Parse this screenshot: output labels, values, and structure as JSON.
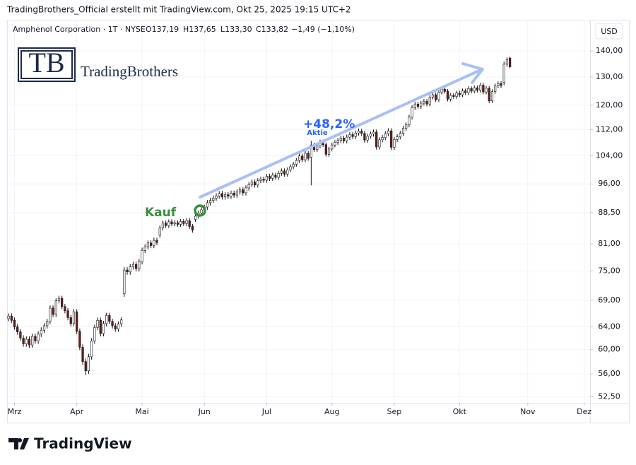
{
  "header": "TradingBrothers_Official erstellt mit TradingView.com, Okt 25, 2025 19:15 UTC+2",
  "logo": {
    "initials": "TB",
    "name": "TradingBrothers"
  },
  "footer": "TradingView",
  "chart_data": {
    "type": "candlestick",
    "title": "Amphenol Corporation · 1T · NYSE",
    "legend_values": [
      "O137,19",
      "H137,65",
      "L133,30",
      "C133,82",
      "−1,49 (−1,10%)"
    ],
    "currency": "USD",
    "annotations": {
      "gain": "+48,2%",
      "gain_note": "Aktie",
      "buy": "Kauf"
    },
    "log_scale": true,
    "grid": true,
    "up_color": "#ffffff",
    "down_color": "#6d1b1b",
    "border_color": "#111111",
    "ylim": [
      51.6,
      152.9
    ],
    "yticks": [
      {
        "value": 52.5,
        "label": "52,50"
      },
      {
        "value": 56,
        "label": "56,00"
      },
      {
        "value": 60,
        "label": "60,00"
      },
      {
        "value": 64,
        "label": "64,00"
      },
      {
        "value": 69,
        "label": "69,00"
      },
      {
        "value": 75,
        "label": "75,00"
      },
      {
        "value": 81,
        "label": "81,00"
      },
      {
        "value": 88.5,
        "label": "88,50"
      },
      {
        "value": 96,
        "label": "96,00"
      },
      {
        "value": 104,
        "label": "104,00"
      },
      {
        "value": 112,
        "label": "112,00"
      },
      {
        "value": 120,
        "label": "120,00"
      },
      {
        "value": 130,
        "label": "130,00"
      },
      {
        "value": 140,
        "label": "140,00"
      }
    ],
    "xlim": [
      -0.5,
      196
    ],
    "xticks": [
      {
        "value": 2,
        "label": "Mrz"
      },
      {
        "value": 23,
        "label": "Apr"
      },
      {
        "value": 45,
        "label": "Mai"
      },
      {
        "value": 66,
        "label": "Jun"
      },
      {
        "value": 87,
        "label": "Jul"
      },
      {
        "value": 109,
        "label": "Aug"
      },
      {
        "value": 130,
        "label": "Sep"
      },
      {
        "value": 152,
        "label": "Okt"
      },
      {
        "value": 175,
        "label": "Nov"
      },
      {
        "value": 194,
        "label": "Dez"
      }
    ],
    "open": [
      65.5,
      66.0,
      65.2,
      64.0,
      63.1,
      62.0,
      61.0,
      61.8,
      60.8,
      62.3,
      61.5,
      62.7,
      63.4,
      64.2,
      65.0,
      67.5,
      66.3,
      68.9,
      69.4,
      67.8,
      67.0,
      65.7,
      64.6,
      66.8,
      63.2,
      60.4,
      58.0,
      56.5,
      58.8,
      61.5,
      63.9,
      65.2,
      62.8,
      64.6,
      66.1,
      65.0,
      64.2,
      63.6,
      64.5,
      70.3,
      75.2,
      74.8,
      75.9,
      76.4,
      75.5,
      77.0,
      79.5,
      80.3,
      81.2,
      80.6,
      81.8,
      83.0,
      84.7,
      85.9,
      85.3,
      86.2,
      85.7,
      86.0,
      85.6,
      86.3,
      85.8,
      86.5,
      85.1,
      86.8,
      87.6,
      88.4,
      89.2,
      89.9,
      91.0,
      91.6,
      92.2,
      92.8,
      93.4,
      92.5,
      93.1,
      92.7,
      93.5,
      93.0,
      93.8,
      94.4,
      93.6,
      94.9,
      95.8,
      96.5,
      95.7,
      96.9,
      97.3,
      97.0,
      98.1,
      97.5,
      98.4,
      97.8,
      98.9,
      99.6,
      98.7,
      99.9,
      100.8,
      101.5,
      102.6,
      103.9,
      102.8,
      104.7,
      103.5,
      107.2,
      105.8,
      106.9,
      108.1,
      107.3,
      104.4,
      106.0,
      107.2,
      108.0,
      108.6,
      109.3,
      108.5,
      109.6,
      110.4,
      109.8,
      110.9,
      111.5,
      110.8,
      108.7,
      109.9,
      110.6,
      111.2,
      106.6,
      108.8,
      109.5,
      110.7,
      111.6,
      106.5,
      108.9,
      109.7,
      110.8,
      112.4,
      113.5,
      116.0,
      119.2,
      120.4,
      119.6,
      120.7,
      121.3,
      120.4,
      122.8,
      123.6,
      121.9,
      124.5,
      125.6,
      124.8,
      122.1,
      123.4,
      123.0,
      124.2,
      123.6,
      125.0,
      124.3,
      125.8,
      124.9,
      126.1,
      125.2,
      127.0,
      124.6,
      125.9,
      121.5,
      124.7,
      126.8,
      127.6,
      128.0,
      134.8,
      137.19
    ],
    "high": [
      66.5,
      66.5,
      65.7,
      64.5,
      63.6,
      62.5,
      62.3,
      62.3,
      62.8,
      62.8,
      63.2,
      63.9,
      64.7,
      65.5,
      68.0,
      68.0,
      69.4,
      69.9,
      69.9,
      68.3,
      67.5,
      66.2,
      67.3,
      67.3,
      63.7,
      60.9,
      58.5,
      59.3,
      62.0,
      64.4,
      65.7,
      65.7,
      65.1,
      66.6,
      66.6,
      65.5,
      64.7,
      65.0,
      65.8,
      75.8,
      75.8,
      76.5,
      77.0,
      77.0,
      77.6,
      80.1,
      80.9,
      81.8,
      81.8,
      82.4,
      82.4,
      85.3,
      86.5,
      86.5,
      86.8,
      86.8,
      86.6,
      86.6,
      86.9,
      86.9,
      87.1,
      87.1,
      85.7,
      88.2,
      89.0,
      89.8,
      90.5,
      91.7,
      92.3,
      92.9,
      93.5,
      94.1,
      94.1,
      93.8,
      93.8,
      94.2,
      94.2,
      94.5,
      95.1,
      95.1,
      95.6,
      96.5,
      97.2,
      97.2,
      97.6,
      98.0,
      98.0,
      98.8,
      98.8,
      99.1,
      99.1,
      99.6,
      100.3,
      100.3,
      100.6,
      101.5,
      102.2,
      103.3,
      104.6,
      104.6,
      105.4,
      105.4,
      108.5,
      107.9,
      107.6,
      108.8,
      108.8,
      108.0,
      106.7,
      107.9,
      108.7,
      109.4,
      110.1,
      110.1,
      110.4,
      111.2,
      111.2,
      111.7,
      112.3,
      112.3,
      111.6,
      110.7,
      111.4,
      112.0,
      112.0,
      109.6,
      110.3,
      111.5,
      112.4,
      112.4,
      109.7,
      110.5,
      111.6,
      113.2,
      114.3,
      116.8,
      120.0,
      121.2,
      121.2,
      121.5,
      122.1,
      122.1,
      123.6,
      124.4,
      124.4,
      125.3,
      126.4,
      126.4,
      125.6,
      124.2,
      124.2,
      125.0,
      125.0,
      125.8,
      125.8,
      126.6,
      126.6,
      126.9,
      126.9,
      127.8,
      127.8,
      126.7,
      126.7,
      125.5,
      127.6,
      128.4,
      128.4,
      135.8,
      137.5,
      137.65
    ],
    "low": [
      65.0,
      64.7,
      63.5,
      62.6,
      61.5,
      60.5,
      60.5,
      60.3,
      60.3,
      61.0,
      61.0,
      62.2,
      62.9,
      63.7,
      64.5,
      65.8,
      65.8,
      68.4,
      67.3,
      66.5,
      65.2,
      64.1,
      64.1,
      62.7,
      59.9,
      57.5,
      55.8,
      56.0,
      58.3,
      61.0,
      63.4,
      62.3,
      62.3,
      64.1,
      64.5,
      63.7,
      63.1,
      63.1,
      64.0,
      69.7,
      74.2,
      74.2,
      75.3,
      74.9,
      74.9,
      76.4,
      78.9,
      79.7,
      80.0,
      80.0,
      80.7,
      82.4,
      84.1,
      84.7,
      84.7,
      85.1,
      85.1,
      85.0,
      85.0,
      85.2,
      85.2,
      84.5,
      83.6,
      86.2,
      87.0,
      87.8,
      88.6,
      89.2,
      90.3,
      90.9,
      91.5,
      92.1,
      91.8,
      91.8,
      92.0,
      92.0,
      92.3,
      92.3,
      93.1,
      92.9,
      92.9,
      94.2,
      95.1,
      95.0,
      95.0,
      96.2,
      96.3,
      96.3,
      96.8,
      96.8,
      97.1,
      97.1,
      98.2,
      98.0,
      98.0,
      99.2,
      100.1,
      100.8,
      101.9,
      102.1,
      102.1,
      102.5,
      95.6,
      105.1,
      105.1,
      106.2,
      106.6,
      103.7,
      103.7,
      105.3,
      106.5,
      107.2,
      107.8,
      107.7,
      107.7,
      108.8,
      109.0,
      109.0,
      110.1,
      110.0,
      107.9,
      107.9,
      109.1,
      109.8,
      105.8,
      105.8,
      108.0,
      108.7,
      109.9,
      105.7,
      105.7,
      108.1,
      108.9,
      110.0,
      111.6,
      112.7,
      115.2,
      118.4,
      118.8,
      118.8,
      119.9,
      119.6,
      119.6,
      122.0,
      121.1,
      121.1,
      123.7,
      124.0,
      121.3,
      121.3,
      122.2,
      122.2,
      122.8,
      122.8,
      123.5,
      123.5,
      124.1,
      124.1,
      124.4,
      124.4,
      123.8,
      123.8,
      120.7,
      120.7,
      123.9,
      126.0,
      126.1,
      127.0,
      133.8,
      133.3
    ],
    "close": [
      66.0,
      65.2,
      64.0,
      63.1,
      62.0,
      61.0,
      61.8,
      60.8,
      62.3,
      61.5,
      62.7,
      63.4,
      64.2,
      65.0,
      67.5,
      66.3,
      68.9,
      69.4,
      67.8,
      67.0,
      65.7,
      64.6,
      66.8,
      63.2,
      60.4,
      58.0,
      56.5,
      58.8,
      61.5,
      63.9,
      65.2,
      62.8,
      64.6,
      66.1,
      65.0,
      64.2,
      63.6,
      64.5,
      65.3,
      75.2,
      74.8,
      75.9,
      76.4,
      75.5,
      77.0,
      79.5,
      80.3,
      81.2,
      80.6,
      81.8,
      81.3,
      84.7,
      85.9,
      85.3,
      86.2,
      85.7,
      86.0,
      85.6,
      86.3,
      85.8,
      86.5,
      85.1,
      84.2,
      87.6,
      88.4,
      89.2,
      89.9,
      91.0,
      91.6,
      92.2,
      92.8,
      93.4,
      92.5,
      93.1,
      92.7,
      93.5,
      93.0,
      93.8,
      94.4,
      93.6,
      94.9,
      95.8,
      96.5,
      95.7,
      96.9,
      97.3,
      97.0,
      98.1,
      97.5,
      98.4,
      97.8,
      98.9,
      99.6,
      98.7,
      99.9,
      100.8,
      101.5,
      102.6,
      103.9,
      102.8,
      104.7,
      103.2,
      107.2,
      105.8,
      106.9,
      108.1,
      107.3,
      104.4,
      106.0,
      107.2,
      108.0,
      108.6,
      109.3,
      108.5,
      109.6,
      110.4,
      109.8,
      110.9,
      111.5,
      110.8,
      108.7,
      109.9,
      110.6,
      111.2,
      106.6,
      108.8,
      109.5,
      110.7,
      111.6,
      106.5,
      108.9,
      109.7,
      110.8,
      112.4,
      113.5,
      116.0,
      119.2,
      120.4,
      119.6,
      120.7,
      121.3,
      120.4,
      122.8,
      123.6,
      121.9,
      124.5,
      125.6,
      124.8,
      122.1,
      123.4,
      123.0,
      124.2,
      123.6,
      125.0,
      124.3,
      125.8,
      124.9,
      126.1,
      125.2,
      127.0,
      124.6,
      125.9,
      121.5,
      124.7,
      126.8,
      127.6,
      126.9,
      134.8,
      136.5,
      133.82
    ]
  }
}
